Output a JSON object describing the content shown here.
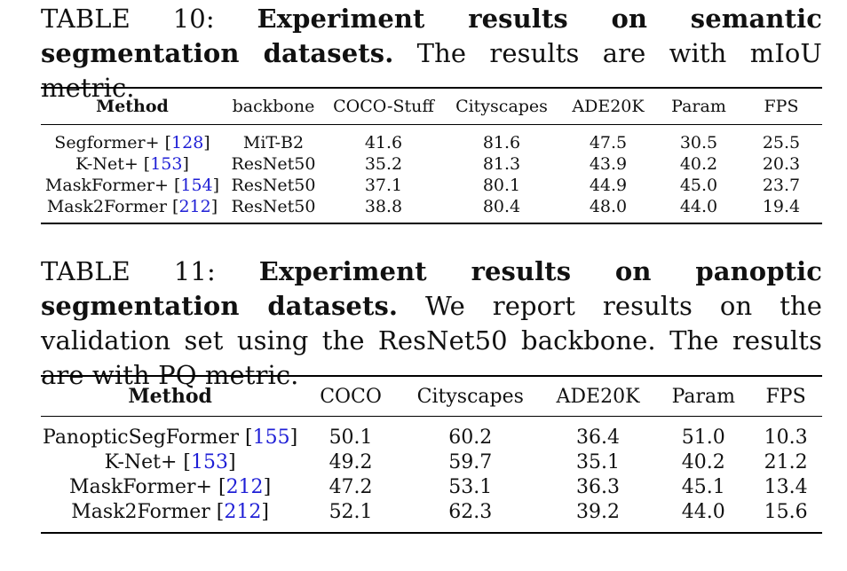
{
  "table10": {
    "label": "TABLE 10:",
    "title": "Experiment results on semantic segmentation datasets.",
    "desc": "The results are with mIoU metric.",
    "headers": [
      "Method",
      "backbone",
      "COCO-Stuff",
      "Cityscapes",
      "ADE20K",
      "Param",
      "FPS"
    ],
    "rows": [
      {
        "method": "Segformer+",
        "ref": "128",
        "backbone": "MiT-B2",
        "coco_stuff": "41.6",
        "cityscapes": "81.6",
        "ade20k": "47.5",
        "param": "30.5",
        "fps": "25.5"
      },
      {
        "method": "K-Net+",
        "ref": "153",
        "backbone": "ResNet50",
        "coco_stuff": "35.2",
        "cityscapes": "81.3",
        "ade20k": "43.9",
        "param": "40.2",
        "fps": "20.3"
      },
      {
        "method": "MaskFormer+",
        "ref": "154",
        "backbone": "ResNet50",
        "coco_stuff": "37.1",
        "cityscapes": "80.1",
        "ade20k": "44.9",
        "param": "45.0",
        "fps": "23.7"
      },
      {
        "method": "Mask2Former",
        "ref": "212",
        "backbone": "ResNet50",
        "coco_stuff": "38.8",
        "cityscapes": "80.4",
        "ade20k": "48.0",
        "param": "44.0",
        "fps": "19.4"
      }
    ]
  },
  "table11": {
    "label": "TABLE 11:",
    "title": "Experiment results on panoptic segmentation datasets.",
    "desc": "We report results on the validation set using the ResNet50 backbone. The results are with PQ metric.",
    "headers": [
      "Method",
      "COCO",
      "Cityscapes",
      "ADE20K",
      "Param",
      "FPS"
    ],
    "rows": [
      {
        "method": "PanopticSegFormer",
        "ref": "155",
        "coco": "50.1",
        "cityscapes": "60.2",
        "ade20k": "36.4",
        "param": "51.0",
        "fps": "10.3"
      },
      {
        "method": "K-Net+",
        "ref": "153",
        "coco": "49.2",
        "cityscapes": "59.7",
        "ade20k": "35.1",
        "param": "40.2",
        "fps": "21.2"
      },
      {
        "method": "MaskFormer+",
        "ref": "212",
        "coco": "47.2",
        "cityscapes": "53.1",
        "ade20k": "36.3",
        "param": "45.1",
        "fps": "13.4"
      },
      {
        "method": "Mask2Former",
        "ref": "212",
        "coco": "52.1",
        "cityscapes": "62.3",
        "ade20k": "39.2",
        "param": "44.0",
        "fps": "15.6"
      }
    ]
  }
}
